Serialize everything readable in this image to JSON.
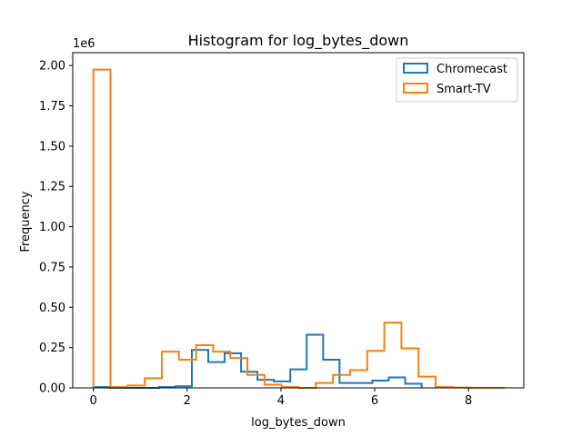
{
  "chart_data": {
    "type": "histogram",
    "title": "Histogram for log_bytes_down",
    "xlabel": "log_bytes_down",
    "ylabel": "Frequency",
    "y_offset_label": "1e6",
    "xlim": [
      -0.44,
      9.18
    ],
    "ylim": [
      0,
      2.08
    ],
    "x_ticks": [
      0,
      2,
      4,
      6,
      8
    ],
    "x_tick_labels": [
      "0",
      "2",
      "4",
      "6",
      "8"
    ],
    "y_ticks": [
      0,
      0.25,
      0.5,
      0.75,
      1.0,
      1.25,
      1.5,
      1.75,
      2.0
    ],
    "y_tick_labels": [
      "0.00",
      "0.25",
      "0.50",
      "0.75",
      "1.00",
      "1.25",
      "1.50",
      "1.75",
      "2.00"
    ],
    "legend_position": "upper-right",
    "series": [
      {
        "name": "Chromecast",
        "color": "#1f77b4",
        "bin_edges": [
          0,
          0.35,
          0.7,
          1.05,
          1.4,
          1.75,
          2.1,
          2.45,
          2.8,
          3.15,
          3.5,
          3.85,
          4.2,
          4.55,
          4.9,
          5.25,
          5.6,
          5.95,
          6.3,
          6.65,
          7.0
        ],
        "values": [
          0.005,
          0,
          0,
          0,
          0.005,
          0.01,
          0.235,
          0.16,
          0.215,
          0.1,
          0.05,
          0.04,
          0.115,
          0.33,
          0.175,
          0.03,
          0.03,
          0.045,
          0.065,
          0.025
        ]
      },
      {
        "name": "Smart-TV",
        "color": "#ff7f0e",
        "bin_edges": [
          0,
          0.365,
          0.73,
          1.095,
          1.46,
          1.825,
          2.19,
          2.555,
          2.92,
          3.285,
          3.65,
          4.015,
          4.38,
          4.745,
          5.11,
          5.475,
          5.84,
          6.205,
          6.57,
          6.935,
          7.3,
          7.665,
          8.03,
          8.395,
          8.76
        ],
        "values": [
          1.975,
          0.005,
          0.015,
          0.06,
          0.225,
          0.175,
          0.265,
          0.225,
          0.185,
          0.08,
          0.02,
          0.005,
          0.0,
          0.03,
          0.08,
          0.11,
          0.23,
          0.405,
          0.245,
          0.07,
          0.005,
          0.002,
          0.001,
          0.001
        ]
      }
    ]
  }
}
